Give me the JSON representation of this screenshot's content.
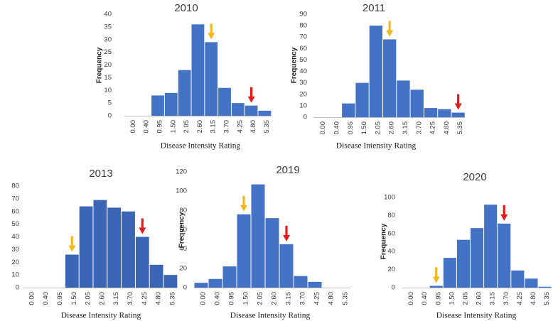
{
  "colors": {
    "bar": "#4472C4",
    "bar_dark": "#3B66B5",
    "yellow_arrow": "#F4B81C",
    "red_arrow": "#E51B1B",
    "axis": "#BFBFBF"
  },
  "chart_data": [
    {
      "type": "bar",
      "title": "2010",
      "xlabel": "Disease Intensity Rating",
      "ylabel": "Frequency",
      "categories": [
        "0.00",
        "0.40",
        "0.95",
        "1.50",
        "2.05",
        "2.60",
        "3.15",
        "3.70",
        "4.25",
        "4.80",
        "5.35"
      ],
      "values": [
        0,
        0,
        8,
        9,
        18,
        36,
        29,
        11,
        5,
        4,
        2
      ],
      "ylim": [
        0,
        40
      ],
      "yticks": [
        "0",
        "5",
        "10",
        "15",
        "20",
        "25",
        "30",
        "35",
        "40"
      ],
      "annotations": [
        {
          "type": "arrow",
          "color": "yellow",
          "category": "3.15"
        },
        {
          "type": "arrow",
          "color": "red",
          "category": "4.80"
        }
      ]
    },
    {
      "type": "bar",
      "title": "2011",
      "xlabel": "Disease Intensity Rating",
      "ylabel": "Frequency",
      "categories": [
        "0.00",
        "0.40",
        "0.95",
        "1.50",
        "2.05",
        "2.60",
        "3.15",
        "3.70",
        "4.25",
        "4.80",
        "5.35"
      ],
      "values": [
        0,
        0,
        12,
        30,
        80,
        68,
        32,
        24,
        8,
        7,
        4
      ],
      "ylim": [
        0,
        90
      ],
      "yticks": [
        "0",
        "10",
        "20",
        "30",
        "40",
        "50",
        "60",
        "70",
        "80",
        "90"
      ],
      "annotations": [
        {
          "type": "arrow",
          "color": "yellow",
          "category": "2.60"
        },
        {
          "type": "arrow",
          "color": "red",
          "category": "5.35"
        }
      ]
    },
    {
      "type": "bar",
      "title": "2013",
      "xlabel": "Disease Intensity Rating",
      "ylabel": "",
      "categories": [
        "0.00",
        "0.40",
        "0.95",
        "1.50",
        "2.05",
        "2.60",
        "3.15",
        "3.70",
        "4.25",
        "4.80",
        "5.35"
      ],
      "values": [
        0,
        0,
        0,
        26,
        64,
        69,
        63,
        60,
        40,
        18,
        10
      ],
      "ylim": [
        0,
        80
      ],
      "yticks": [
        "0",
        "10",
        "20",
        "30",
        "40",
        "50",
        "60",
        "70",
        "80"
      ],
      "annotations": [
        {
          "type": "arrow",
          "color": "yellow",
          "category": "1.50"
        },
        {
          "type": "arrow",
          "color": "red",
          "category": "4.25"
        }
      ]
    },
    {
      "type": "bar",
      "title": "2019",
      "xlabel": "Disease Intensity Rating",
      "ylabel": "Frequency",
      "categories": [
        "0.00",
        "0.40",
        "0.95",
        "1.50",
        "2.05",
        "2.60",
        "3.15",
        "3.70",
        "4.25",
        "4.80",
        "5.35"
      ],
      "values": [
        5,
        9,
        22,
        76,
        107,
        72,
        45,
        12,
        6,
        0,
        0
      ],
      "ylim": [
        0,
        120
      ],
      "yticks": [
        "0",
        "20",
        "40",
        "60",
        "80",
        "100",
        "120"
      ],
      "annotations": [
        {
          "type": "arrow",
          "color": "yellow",
          "category": "1.50"
        },
        {
          "type": "arrow",
          "color": "red",
          "category": "3.15"
        }
      ]
    },
    {
      "type": "bar",
      "title": "2020",
      "xlabel": "Disease Intensity Rating",
      "ylabel": "Frequency",
      "categories": [
        "0.00",
        "0.40",
        "0.95",
        "1.50",
        "2.05",
        "2.60",
        "3.15",
        "3.70",
        "4.25",
        "4.80",
        "5.35"
      ],
      "values": [
        0,
        0,
        2,
        33,
        53,
        66,
        92,
        71,
        19,
        10,
        1
      ],
      "ylim": [
        0,
        100
      ],
      "yticks": [
        "0",
        "20",
        "40",
        "60",
        "80",
        "100"
      ],
      "annotations": [
        {
          "type": "arrow",
          "color": "yellow",
          "category": "0.95"
        },
        {
          "type": "arrow",
          "color": "red",
          "category": "3.70"
        }
      ]
    }
  ]
}
